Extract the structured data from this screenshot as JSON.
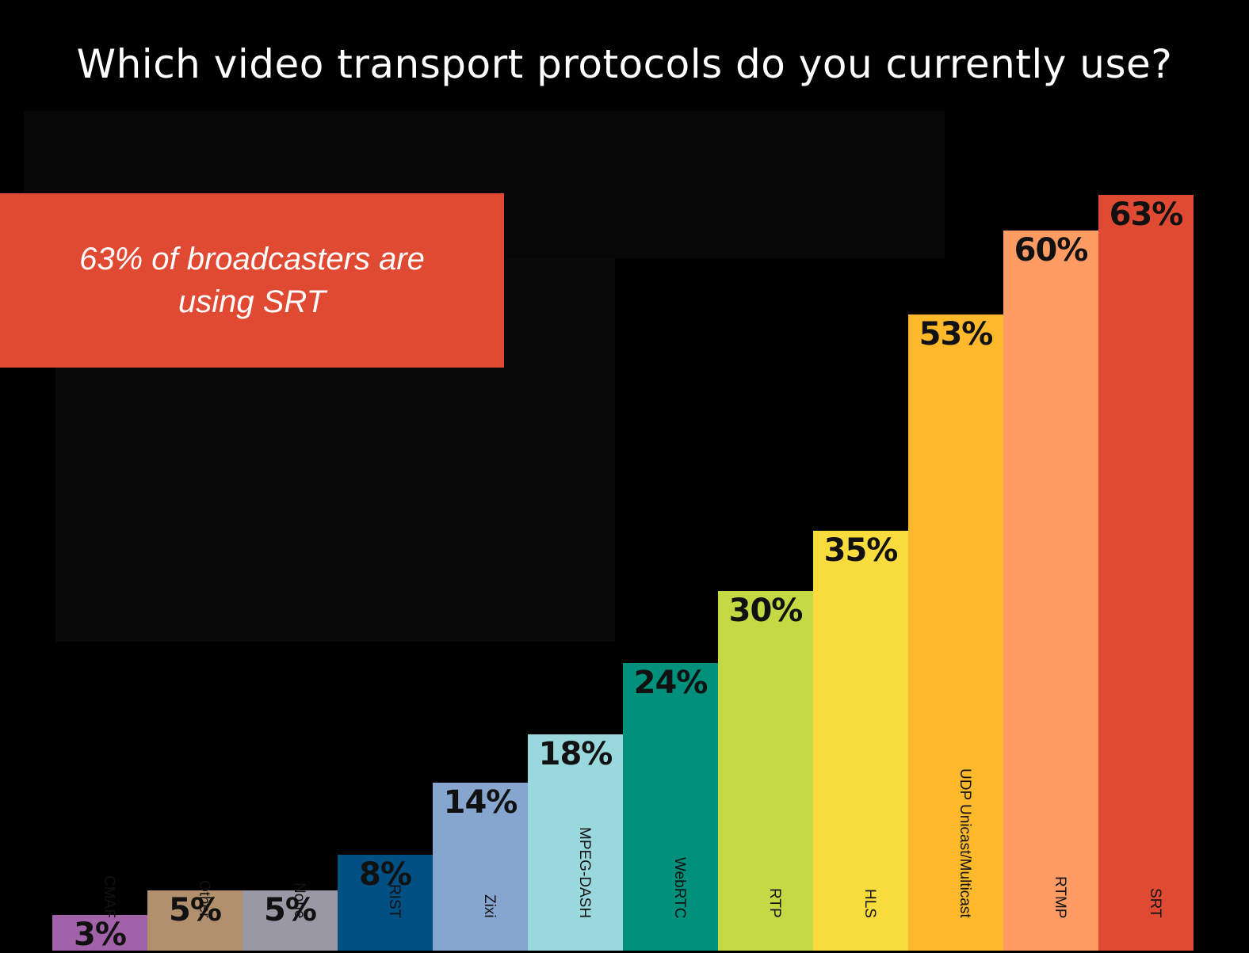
{
  "chart_data": {
    "type": "bar",
    "title": "Which video transport protocols do you currently use?",
    "callout": "63% of broadcasters are using SRT",
    "unit": "%",
    "ylim": [
      0,
      63
    ],
    "grid": false,
    "legend": "none",
    "categories": [
      "CMAF",
      "Other",
      "None",
      "RIST",
      "Zixi",
      "MPEG-DASH",
      "WebRTC",
      "RTP",
      "HLS",
      "UDP Unicast/Multicast",
      "RTMP",
      "SRT"
    ],
    "values": [
      3,
      5,
      5,
      8,
      14,
      18,
      24,
      30,
      35,
      53,
      60,
      63
    ],
    "value_labels": [
      "3%",
      "5%",
      "5%",
      "8%",
      "14%",
      "18%",
      "24%",
      "30%",
      "35%",
      "53%",
      "60%",
      "63%"
    ],
    "colors": [
      "#a262aa",
      "#b2906d",
      "#9a98a4",
      "#005083",
      "#87a6cf",
      "#99d9dd",
      "#00907c",
      "#c4da44",
      "#f8dc3e",
      "#fdb92b",
      "#ff9b63",
      "#e04a33"
    ]
  }
}
